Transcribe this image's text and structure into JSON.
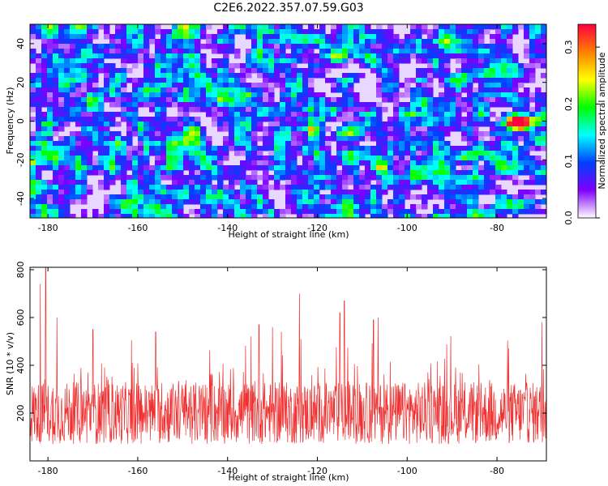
{
  "title": "C2E6.2022.357.07.59.G03",
  "chart_data": [
    {
      "type": "heatmap",
      "xlabel": "Height of straight line (km)",
      "ylabel": "Frequency (Hz)",
      "xlim": [
        -184,
        -69
      ],
      "ylim": [
        -50,
        50
      ],
      "xticks": [
        -180,
        -160,
        -140,
        -120,
        -100,
        -80
      ],
      "yticks": [
        -40,
        -20,
        0,
        20,
        40
      ],
      "colorbar": {
        "label": "Normalized spectral amplitude",
        "range": [
          0.0,
          0.34
        ],
        "ticks": [
          0.0,
          0.1,
          0.2,
          0.3
        ],
        "colormap": [
          "#ffffff",
          "#8000ff",
          "#0040ff",
          "#00ffff",
          "#00ff00",
          "#ffff00",
          "#ff8000",
          "#ff0040"
        ]
      },
      "description_level": "noise field mostly 0.02-0.12; features to 0.3 near x=-75,y=0"
    },
    {
      "type": "line",
      "xlabel": "Height of straight line (km)",
      "ylabel": "SNR (10 * v/v)",
      "xlim": [
        -184,
        -69
      ],
      "ylim": [
        0,
        810
      ],
      "xticks": [
        -180,
        -160,
        -140,
        -120,
        -100,
        -80
      ],
      "yticks": [
        200,
        400,
        600,
        800
      ],
      "color": "#f03030",
      "series_summary": {
        "baseline_mean": 200,
        "noise_range": [
          20,
          500
        ],
        "peaks": [
          {
            "x": -180.5,
            "y": 810
          },
          {
            "x": -181.7,
            "y": 740
          },
          {
            "x": -178.0,
            "y": 600
          },
          {
            "x": -124.0,
            "y": 700
          },
          {
            "x": -114.0,
            "y": 670
          },
          {
            "x": -115.0,
            "y": 620
          },
          {
            "x": -106.5,
            "y": 600
          },
          {
            "x": -107.5,
            "y": 590
          },
          {
            "x": -133.0,
            "y": 570
          },
          {
            "x": -130.0,
            "y": 560
          },
          {
            "x": -128.0,
            "y": 540
          },
          {
            "x": -156.0,
            "y": 540
          },
          {
            "x": -170.0,
            "y": 550
          },
          {
            "x": -70.0,
            "y": 580
          }
        ]
      }
    }
  ]
}
